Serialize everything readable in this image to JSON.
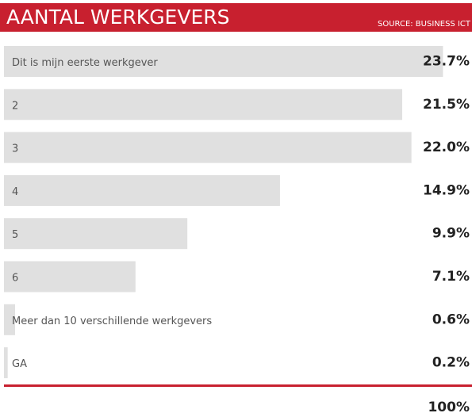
{
  "chart_data": {
    "type": "bar",
    "orientation": "horizontal",
    "title": "AANTAL WERKGEVERS",
    "source": "SOURCE: BUSINESS ICT",
    "categories": [
      "Dit is mijn eerste werkgever",
      "2",
      "3",
      "4",
      "5",
      "6",
      "Meer dan 10 verschillende werkgevers",
      "GA"
    ],
    "values": [
      23.7,
      21.5,
      22.0,
      14.9,
      9.9,
      7.1,
      0.6,
      0.2
    ],
    "value_labels": [
      "23.7%",
      "21.5%",
      "22.0%",
      "14.9%",
      "9.9%",
      "7.1%",
      "0.6%",
      "0.2%"
    ],
    "color": "#e0e0e0",
    "total_label": "100%"
  }
}
